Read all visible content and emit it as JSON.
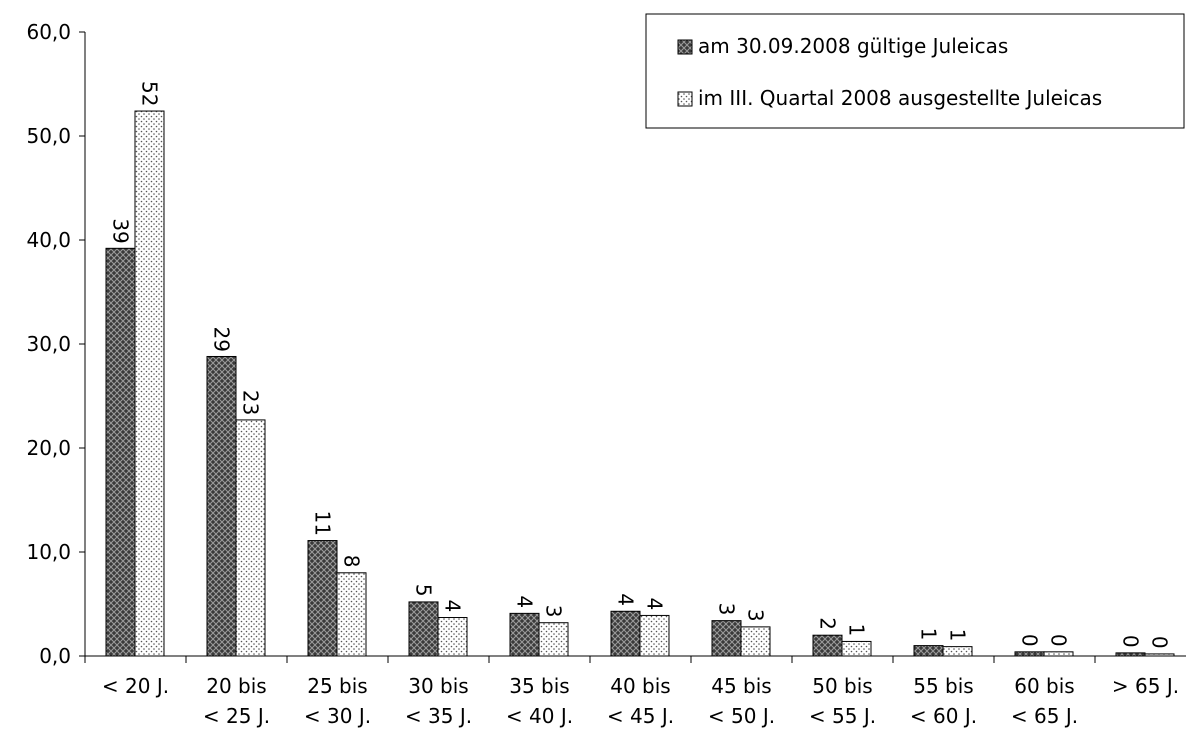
{
  "chart_data": {
    "type": "bar",
    "title": "",
    "xlabel": "",
    "ylabel": "",
    "ylim": [
      0,
      60
    ],
    "yticks": [
      "0,0",
      "10,0",
      "20,0",
      "30,0",
      "40,0",
      "50,0",
      "60,0"
    ],
    "categories": [
      [
        "< 20 J.",
        ""
      ],
      [
        "20 bis",
        "< 25 J."
      ],
      [
        "25 bis",
        "< 30 J."
      ],
      [
        "30 bis",
        "< 35 J."
      ],
      [
        "35 bis",
        "< 40 J."
      ],
      [
        "40 bis",
        "< 45 J."
      ],
      [
        "45 bis",
        "< 50 J."
      ],
      [
        "50 bis",
        "< 55 J."
      ],
      [
        "55 bis",
        "< 60 J."
      ],
      [
        "60 bis",
        "< 65 J."
      ],
      [
        "> 65 J.",
        ""
      ]
    ],
    "series": [
      {
        "name": "am 30.09.2008 gültige Juleicas",
        "pattern": "crosshatch-dark",
        "values": [
          39.2,
          28.8,
          11.1,
          5.2,
          4.1,
          4.3,
          3.4,
          2.0,
          1.0,
          0.4,
          0.3
        ],
        "labels": [
          "39",
          "29",
          "11",
          "5",
          "4",
          "4",
          "3",
          "2",
          "1",
          "0",
          "0"
        ]
      },
      {
        "name": "im III. Quartal 2008 ausgestellte Juleicas",
        "pattern": "dotted-light",
        "values": [
          52.4,
          22.7,
          8.0,
          3.7,
          3.2,
          3.9,
          2.8,
          1.4,
          0.9,
          0.4,
          0.2
        ],
        "labels": [
          "52",
          "23",
          "8",
          "4",
          "3",
          "4",
          "3",
          "1",
          "1",
          "0",
          "0"
        ]
      }
    ],
    "legend_position": "top-right",
    "grid": false
  }
}
